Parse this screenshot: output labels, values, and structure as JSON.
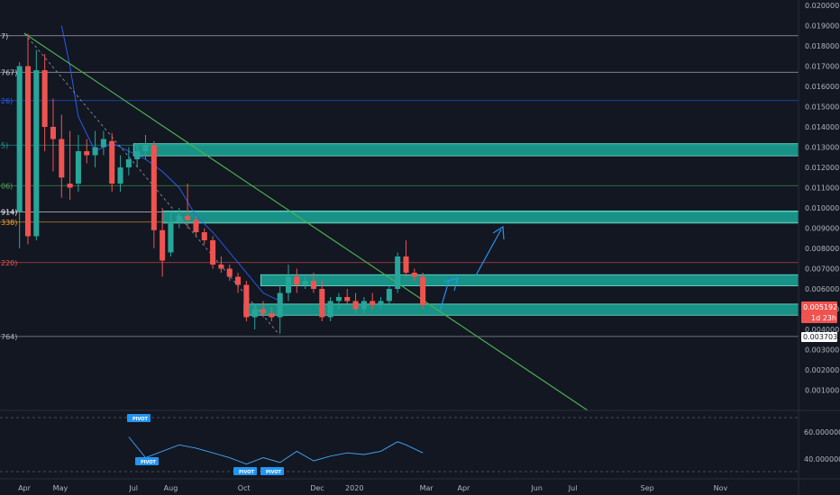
{
  "chart_data": {
    "type": "candlestick",
    "title": "",
    "xlabel": "",
    "ylabel": "",
    "ylim": [
      0.0,
      0.02
    ],
    "grid": false,
    "y_ticks": [
      "0.020000",
      "0.019000",
      "0.018000",
      "0.017000",
      "0.016000",
      "0.015000",
      "0.014000",
      "0.013000",
      "0.012000",
      "0.011000",
      "0.010000",
      "0.009000",
      "0.008000",
      "0.007000",
      "0.006000",
      "0.005000",
      "0.004000",
      "0.003000",
      "0.002000",
      "0.001000"
    ],
    "x_ticks": [
      "Apr",
      "May",
      "Jul",
      "Aug",
      "Oct",
      "Dec",
      "2020",
      "Mar",
      "Apr",
      "Jun",
      "Jul",
      "Sep",
      "Nov"
    ],
    "fib_labels": [
      "7)",
      "767)",
      "26)",
      "5)",
      "06)",
      "914)",
      "338)",
      "220)",
      "764)"
    ],
    "fib_levels": [
      0.0185,
      0.0167,
      0.0153,
      0.0131,
      0.0111,
      0.0098,
      0.0093,
      0.0073,
      0.00365
    ],
    "zones": [
      {
        "low": 0.01257,
        "high": 0.01317,
        "start": "2019-07-01"
      },
      {
        "low": 0.00925,
        "high": 0.00985,
        "start": "2019-07-25"
      },
      {
        "low": 0.00615,
        "high": 0.0067,
        "start": "2019-10-15"
      },
      {
        "low": 0.0047,
        "high": 0.00525,
        "start": "2019-10-01"
      }
    ],
    "candles": [
      {
        "date": "2019-03-28",
        "open": 0.0098,
        "high": 0.0172,
        "low": 0.008,
        "close": 0.017
      },
      {
        "date": "2019-04-04",
        "open": 0.017,
        "high": 0.0186,
        "low": 0.0082,
        "close": 0.0086
      },
      {
        "date": "2019-04-11",
        "open": 0.0086,
        "high": 0.0178,
        "low": 0.0084,
        "close": 0.0168
      },
      {
        "date": "2019-04-18",
        "open": 0.0168,
        "high": 0.0176,
        "low": 0.0128,
        "close": 0.014
      },
      {
        "date": "2019-04-25",
        "open": 0.014,
        "high": 0.0154,
        "low": 0.0118,
        "close": 0.0134
      },
      {
        "date": "2019-05-02",
        "open": 0.0134,
        "high": 0.0146,
        "low": 0.0105,
        "close": 0.0115
      },
      {
        "date": "2019-05-09",
        "open": 0.0112,
        "high": 0.0138,
        "low": 0.0104,
        "close": 0.011
      },
      {
        "date": "2019-05-16",
        "open": 0.0112,
        "high": 0.0136,
        "low": 0.0108,
        "close": 0.0128
      },
      {
        "date": "2019-05-23",
        "open": 0.0128,
        "high": 0.0134,
        "low": 0.0122,
        "close": 0.0126
      },
      {
        "date": "2019-05-30",
        "open": 0.0126,
        "high": 0.0138,
        "low": 0.012,
        "close": 0.013
      },
      {
        "date": "2019-06-06",
        "open": 0.013,
        "high": 0.0138,
        "low": 0.0126,
        "close": 0.0134
      },
      {
        "date": "2019-06-13",
        "open": 0.0133,
        "high": 0.0137,
        "low": 0.0108,
        "close": 0.0112
      },
      {
        "date": "2019-06-20",
        "open": 0.0112,
        "high": 0.0126,
        "low": 0.0108,
        "close": 0.012
      },
      {
        "date": "2019-06-27",
        "open": 0.012,
        "high": 0.013,
        "low": 0.0116,
        "close": 0.0124
      },
      {
        "date": "2019-07-04",
        "open": 0.0124,
        "high": 0.0132,
        "low": 0.012,
        "close": 0.0128
      },
      {
        "date": "2019-07-11",
        "open": 0.0128,
        "high": 0.0136,
        "low": 0.0124,
        "close": 0.0131
      },
      {
        "date": "2019-07-18",
        "open": 0.0131,
        "high": 0.0133,
        "low": 0.008,
        "close": 0.0089
      },
      {
        "date": "2019-07-25",
        "open": 0.0089,
        "high": 0.01,
        "low": 0.0066,
        "close": 0.0074
      },
      {
        "date": "2019-08-01",
        "open": 0.0078,
        "high": 0.0098,
        "low": 0.0076,
        "close": 0.0093
      },
      {
        "date": "2019-08-08",
        "open": 0.0093,
        "high": 0.01,
        "low": 0.009,
        "close": 0.0096
      },
      {
        "date": "2019-08-15",
        "open": 0.0096,
        "high": 0.0112,
        "low": 0.009,
        "close": 0.0094
      },
      {
        "date": "2019-08-22",
        "open": 0.0094,
        "high": 0.0096,
        "low": 0.0086,
        "close": 0.0088
      },
      {
        "date": "2019-08-29",
        "open": 0.0088,
        "high": 0.009,
        "low": 0.0082,
        "close": 0.0084
      },
      {
        "date": "2019-09-05",
        "open": 0.0084,
        "high": 0.0086,
        "low": 0.007,
        "close": 0.0072
      },
      {
        "date": "2019-09-12",
        "open": 0.0072,
        "high": 0.0076,
        "low": 0.0068,
        "close": 0.007
      },
      {
        "date": "2019-09-19",
        "open": 0.007,
        "high": 0.0072,
        "low": 0.0064,
        "close": 0.0066
      },
      {
        "date": "2019-09-26",
        "open": 0.0066,
        "high": 0.0068,
        "low": 0.0058,
        "close": 0.0062
      },
      {
        "date": "2019-10-03",
        "open": 0.0062,
        "high": 0.0064,
        "low": 0.0044,
        "close": 0.0046
      },
      {
        "date": "2019-10-10",
        "open": 0.0046,
        "high": 0.0052,
        "low": 0.004,
        "close": 0.005
      },
      {
        "date": "2019-10-17",
        "open": 0.005,
        "high": 0.0054,
        "low": 0.0046,
        "close": 0.0048
      },
      {
        "date": "2019-10-24",
        "open": 0.0048,
        "high": 0.0051,
        "low": 0.0044,
        "close": 0.0046
      },
      {
        "date": "2019-10-31",
        "open": 0.0046,
        "high": 0.0062,
        "low": 0.0038,
        "close": 0.0058
      },
      {
        "date": "2019-11-07",
        "open": 0.0058,
        "high": 0.0072,
        "low": 0.0054,
        "close": 0.0066
      },
      {
        "date": "2019-11-14",
        "open": 0.0066,
        "high": 0.007,
        "low": 0.0058,
        "close": 0.0062
      },
      {
        "date": "2019-11-21",
        "open": 0.0062,
        "high": 0.0066,
        "low": 0.006,
        "close": 0.0064
      },
      {
        "date": "2019-11-28",
        "open": 0.0064,
        "high": 0.0068,
        "low": 0.0058,
        "close": 0.006
      },
      {
        "date": "2019-12-05",
        "open": 0.006,
        "high": 0.0064,
        "low": 0.0044,
        "close": 0.0046
      },
      {
        "date": "2019-12-12",
        "open": 0.0046,
        "high": 0.0056,
        "low": 0.0044,
        "close": 0.0054
      },
      {
        "date": "2019-12-19",
        "open": 0.0054,
        "high": 0.0058,
        "low": 0.005,
        "close": 0.0056
      },
      {
        "date": "2019-12-26",
        "open": 0.0056,
        "high": 0.006,
        "low": 0.0052,
        "close": 0.0054
      },
      {
        "date": "2020-01-02",
        "open": 0.0054,
        "high": 0.0058,
        "low": 0.0048,
        "close": 0.005
      },
      {
        "date": "2020-01-09",
        "open": 0.005,
        "high": 0.0056,
        "low": 0.0048,
        "close": 0.0054
      },
      {
        "date": "2020-01-16",
        "open": 0.0054,
        "high": 0.0058,
        "low": 0.005,
        "close": 0.0052
      },
      {
        "date": "2020-01-23",
        "open": 0.0052,
        "high": 0.0056,
        "low": 0.005,
        "close": 0.0054
      },
      {
        "date": "2020-01-30",
        "open": 0.0054,
        "high": 0.0062,
        "low": 0.0052,
        "close": 0.006
      },
      {
        "date": "2020-02-06",
        "open": 0.006,
        "high": 0.0078,
        "low": 0.0058,
        "close": 0.0076
      },
      {
        "date": "2020-02-13",
        "open": 0.0076,
        "high": 0.0084,
        "low": 0.0066,
        "close": 0.0068
      },
      {
        "date": "2020-02-20",
        "open": 0.0068,
        "high": 0.007,
        "low": 0.0064,
        "close": 0.0066
      },
      {
        "date": "2020-02-27",
        "open": 0.0066,
        "high": 0.0068,
        "low": 0.005,
        "close": 0.0052
      }
    ],
    "ma_blue": [
      {
        "date": "2019-05-02",
        "value": 0.019
      },
      {
        "date": "2019-05-09",
        "value": 0.017
      },
      {
        "date": "2019-05-16",
        "value": 0.0145
      },
      {
        "date": "2019-05-30",
        "value": 0.0128
      },
      {
        "date": "2019-06-13",
        "value": 0.0132
      },
      {
        "date": "2019-06-27",
        "value": 0.0128
      },
      {
        "date": "2019-07-11",
        "value": 0.0124
      },
      {
        "date": "2019-07-25",
        "value": 0.0118
      },
      {
        "date": "2019-08-08",
        "value": 0.011
      },
      {
        "date": "2019-08-22",
        "value": 0.0096
      },
      {
        "date": "2019-09-05",
        "value": 0.0088
      },
      {
        "date": "2019-09-19",
        "value": 0.0078
      },
      {
        "date": "2019-10-03",
        "value": 0.0068
      },
      {
        "date": "2019-10-17",
        "value": 0.0058
      },
      {
        "date": "2019-10-31",
        "value": 0.0054
      }
    ],
    "rsi": [
      {
        "date": "2019-06-27",
        "value": 63
      },
      {
        "date": "2019-07-11",
        "value": 50
      },
      {
        "date": "2019-07-25",
        "value": 54
      },
      {
        "date": "2019-08-08",
        "value": 58
      },
      {
        "date": "2019-08-22",
        "value": 56
      },
      {
        "date": "2019-09-05",
        "value": 53
      },
      {
        "date": "2019-09-19",
        "value": 50
      },
      {
        "date": "2019-10-03",
        "value": 46
      },
      {
        "date": "2019-10-17",
        "value": 50
      },
      {
        "date": "2019-10-31",
        "value": 47
      },
      {
        "date": "2019-11-14",
        "value": 54
      },
      {
        "date": "2019-11-28",
        "value": 48
      },
      {
        "date": "2019-12-12",
        "value": 51
      },
      {
        "date": "2019-12-26",
        "value": 53
      },
      {
        "date": "2020-01-09",
        "value": 52
      },
      {
        "date": "2020-01-23",
        "value": 54
      },
      {
        "date": "2020-02-06",
        "value": 60
      },
      {
        "date": "2020-02-13",
        "value": 58
      },
      {
        "date": "2020-02-27",
        "value": 53
      }
    ],
    "oscillator_ticks": [
      "60.000000",
      "40.000000"
    ],
    "oscillator_range": [
      30,
      75
    ]
  },
  "price_tags": {
    "current_price": "0.005192",
    "countdown": "1d 23h",
    "low_level": "0.003703",
    "hidden_price": "0.004000"
  },
  "pivots": [
    "PIVOT",
    "PIVOT",
    "PIVOT",
    "PIVOT"
  ],
  "colors": {
    "background": "#131722",
    "bull": "#26a69a",
    "bear": "#ef5350",
    "zone_fill": "#1ab5a3",
    "trendline": "#4caf50",
    "ma_blue": "#2962ff",
    "arrow": "#2196f3",
    "pivot": "#2196f3",
    "osc_line": "#42a5f5"
  }
}
